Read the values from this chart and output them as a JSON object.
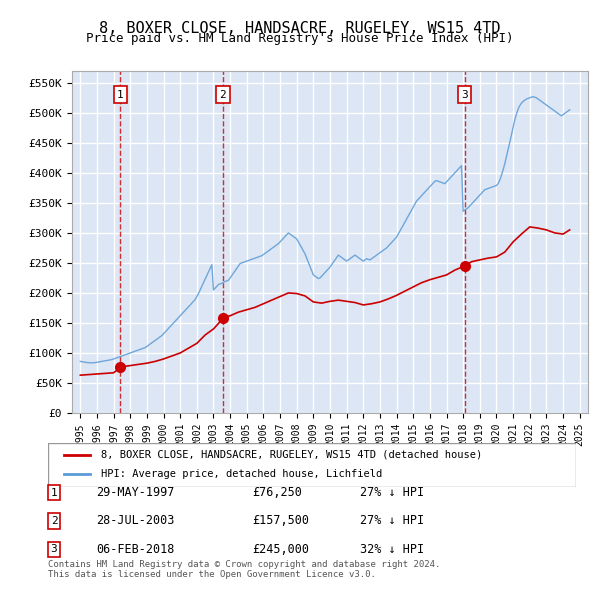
{
  "title": "8, BOXER CLOSE, HANDSACRE, RUGELEY, WS15 4TD",
  "subtitle": "Price paid vs. HM Land Registry's House Price Index (HPI)",
  "ylabel_ticks": [
    "£0",
    "£50K",
    "£100K",
    "£150K",
    "£200K",
    "£250K",
    "£300K",
    "£350K",
    "£400K",
    "£450K",
    "£500K",
    "£550K"
  ],
  "ytick_values": [
    0,
    50000,
    100000,
    150000,
    200000,
    250000,
    300000,
    350000,
    400000,
    450000,
    500000,
    550000
  ],
  "xlim": [
    1994.5,
    2025.5
  ],
  "ylim": [
    0,
    570000
  ],
  "bg_color": "#e8eef8",
  "plot_bg": "#dce6f5",
  "grid_color": "#ffffff",
  "sale_points": [
    {
      "date_num": 1997.41,
      "price": 76250,
      "label": "1"
    },
    {
      "date_num": 2003.57,
      "price": 157500,
      "label": "2"
    },
    {
      "date_num": 2018.09,
      "price": 245000,
      "label": "3"
    }
  ],
  "sale_marker_color": "#cc0000",
  "vline_color": "#cc0000",
  "legend_entries": [
    "8, BOXER CLOSE, HANDSACRE, RUGELEY, WS15 4TD (detached house)",
    "HPI: Average price, detached house, Lichfield"
  ],
  "table_rows": [
    [
      "1",
      "29-MAY-1997",
      "£76,250",
      "27% ↓ HPI"
    ],
    [
      "2",
      "28-JUL-2003",
      "£157,500",
      "27% ↓ HPI"
    ],
    [
      "3",
      "06-FEB-2018",
      "£245,000",
      "32% ↓ HPI"
    ]
  ],
  "footer": "Contains HM Land Registry data © Crown copyright and database right 2024.\nThis data is licensed under the Open Government Licence v3.0.",
  "hpi_data": {
    "years": [
      1995.0,
      1995.1,
      1995.2,
      1995.3,
      1995.4,
      1995.5,
      1995.6,
      1995.7,
      1995.8,
      1995.9,
      1996.0,
      1996.1,
      1996.2,
      1996.3,
      1996.4,
      1996.5,
      1996.6,
      1996.7,
      1996.8,
      1996.9,
      1997.0,
      1997.1,
      1997.2,
      1997.3,
      1997.4,
      1997.5,
      1997.6,
      1997.7,
      1997.8,
      1997.9,
      1998.0,
      1998.1,
      1998.2,
      1998.3,
      1998.4,
      1998.5,
      1998.6,
      1998.7,
      1998.8,
      1998.9,
      1999.0,
      1999.1,
      1999.2,
      1999.3,
      1999.4,
      1999.5,
      1999.6,
      1999.7,
      1999.8,
      1999.9,
      2000.0,
      2000.1,
      2000.2,
      2000.3,
      2000.4,
      2000.5,
      2000.6,
      2000.7,
      2000.8,
      2000.9,
      2001.0,
      2001.1,
      2001.2,
      2001.3,
      2001.4,
      2001.5,
      2001.6,
      2001.7,
      2001.8,
      2001.9,
      2002.0,
      2002.1,
      2002.2,
      2002.3,
      2002.4,
      2002.5,
      2002.6,
      2002.7,
      2002.8,
      2002.9,
      2003.0,
      2003.1,
      2003.2,
      2003.3,
      2003.4,
      2003.5,
      2003.6,
      2003.7,
      2003.8,
      2003.9,
      2004.0,
      2004.1,
      2004.2,
      2004.3,
      2004.4,
      2004.5,
      2004.6,
      2004.7,
      2004.8,
      2004.9,
      2005.0,
      2005.1,
      2005.2,
      2005.3,
      2005.4,
      2005.5,
      2005.6,
      2005.7,
      2005.8,
      2005.9,
      2006.0,
      2006.1,
      2006.2,
      2006.3,
      2006.4,
      2006.5,
      2006.6,
      2006.7,
      2006.8,
      2006.9,
      2007.0,
      2007.1,
      2007.2,
      2007.3,
      2007.4,
      2007.5,
      2007.6,
      2007.7,
      2007.8,
      2007.9,
      2008.0,
      2008.1,
      2008.2,
      2008.3,
      2008.4,
      2008.5,
      2008.6,
      2008.7,
      2008.8,
      2008.9,
      2009.0,
      2009.1,
      2009.2,
      2009.3,
      2009.4,
      2009.5,
      2009.6,
      2009.7,
      2009.8,
      2009.9,
      2010.0,
      2010.1,
      2010.2,
      2010.3,
      2010.4,
      2010.5,
      2010.6,
      2010.7,
      2010.8,
      2010.9,
      2011.0,
      2011.1,
      2011.2,
      2011.3,
      2011.4,
      2011.5,
      2011.6,
      2011.7,
      2011.8,
      2011.9,
      2012.0,
      2012.1,
      2012.2,
      2012.3,
      2012.4,
      2012.5,
      2012.6,
      2012.7,
      2012.8,
      2012.9,
      2013.0,
      2013.1,
      2013.2,
      2013.3,
      2013.4,
      2013.5,
      2013.6,
      2013.7,
      2013.8,
      2013.9,
      2014.0,
      2014.1,
      2014.2,
      2014.3,
      2014.4,
      2014.5,
      2014.6,
      2014.7,
      2014.8,
      2014.9,
      2015.0,
      2015.1,
      2015.2,
      2015.3,
      2015.4,
      2015.5,
      2015.6,
      2015.7,
      2015.8,
      2015.9,
      2016.0,
      2016.1,
      2016.2,
      2016.3,
      2016.4,
      2016.5,
      2016.6,
      2016.7,
      2016.8,
      2016.9,
      2017.0,
      2017.1,
      2017.2,
      2017.3,
      2017.4,
      2017.5,
      2017.6,
      2017.7,
      2017.8,
      2017.9,
      2018.0,
      2018.1,
      2018.2,
      2018.3,
      2018.4,
      2018.5,
      2018.6,
      2018.7,
      2018.8,
      2018.9,
      2019.0,
      2019.1,
      2019.2,
      2019.3,
      2019.4,
      2019.5,
      2019.6,
      2019.7,
      2019.8,
      2019.9,
      2020.0,
      2020.1,
      2020.2,
      2020.3,
      2020.4,
      2020.5,
      2020.6,
      2020.7,
      2020.8,
      2020.9,
      2021.0,
      2021.1,
      2021.2,
      2021.3,
      2021.4,
      2021.5,
      2021.6,
      2021.7,
      2021.8,
      2021.9,
      2022.0,
      2022.1,
      2022.2,
      2022.3,
      2022.4,
      2022.5,
      2022.6,
      2022.7,
      2022.8,
      2022.9,
      2023.0,
      2023.1,
      2023.2,
      2023.3,
      2023.4,
      2023.5,
      2023.6,
      2023.7,
      2023.8,
      2023.9,
      2024.0,
      2024.1,
      2024.2,
      2024.3,
      2024.4
    ],
    "values": [
      86000,
      85500,
      85000,
      84500,
      84000,
      83800,
      83600,
      83500,
      83700,
      84000,
      84500,
      85000,
      85500,
      86000,
      86500,
      87000,
      87500,
      88000,
      88500,
      89000,
      90000,
      91000,
      92000,
      93000,
      94000,
      95000,
      96000,
      97000,
      98000,
      99000,
      100000,
      101000,
      102000,
      103000,
      104000,
      105000,
      106000,
      107000,
      108000,
      109000,
      111000,
      113000,
      115000,
      117000,
      119000,
      121000,
      123000,
      125000,
      127000,
      129000,
      132000,
      135000,
      138000,
      141000,
      144000,
      147000,
      150000,
      153000,
      156000,
      159000,
      162000,
      165000,
      168000,
      171000,
      174000,
      177000,
      180000,
      183000,
      186000,
      189000,
      194000,
      199000,
      205000,
      211000,
      217000,
      223000,
      229000,
      235000,
      241000,
      247000,
      205000,
      208000,
      211000,
      214000,
      215000,
      216000,
      218000,
      219000,
      220000,
      221000,
      225000,
      229000,
      233000,
      237000,
      241000,
      245000,
      249000,
      250000,
      251000,
      252000,
      253000,
      254000,
      255000,
      256000,
      257000,
      258000,
      259000,
      260000,
      261000,
      262000,
      264000,
      266000,
      268000,
      270000,
      272000,
      274000,
      276000,
      278000,
      280000,
      282000,
      285000,
      288000,
      291000,
      294000,
      297000,
      300000,
      298000,
      296000,
      294000,
      292000,
      290000,
      285000,
      280000,
      275000,
      270000,
      265000,
      258000,
      251000,
      244000,
      237000,
      230000,
      228000,
      226000,
      224000,
      225000,
      228000,
      231000,
      234000,
      237000,
      240000,
      243000,
      247000,
      251000,
      255000,
      259000,
      263000,
      261000,
      259000,
      257000,
      255000,
      253000,
      255000,
      257000,
      259000,
      261000,
      263000,
      261000,
      259000,
      257000,
      255000,
      253000,
      255000,
      257000,
      256000,
      255000,
      257000,
      259000,
      261000,
      263000,
      265000,
      267000,
      269000,
      271000,
      273000,
      275000,
      278000,
      281000,
      284000,
      287000,
      290000,
      293000,
      298000,
      303000,
      308000,
      313000,
      318000,
      323000,
      328000,
      333000,
      338000,
      343000,
      348000,
      353000,
      356000,
      359000,
      362000,
      365000,
      368000,
      371000,
      374000,
      377000,
      380000,
      383000,
      386000,
      387000,
      386000,
      385000,
      384000,
      383000,
      382000,
      385000,
      388000,
      391000,
      394000,
      397000,
      400000,
      403000,
      406000,
      409000,
      412000,
      336000,
      338000,
      340000,
      342000,
      345000,
      348000,
      351000,
      354000,
      357000,
      360000,
      363000,
      366000,
      369000,
      372000,
      373000,
      374000,
      375000,
      376000,
      377000,
      378000,
      379000,
      382000,
      388000,
      396000,
      405000,
      415000,
      427000,
      439000,
      451000,
      463000,
      476000,
      488000,
      498000,
      506000,
      512000,
      516000,
      519000,
      521000,
      523000,
      524000,
      525000,
      526000,
      527000,
      526000,
      525000,
      523000,
      521000,
      519000,
      517000,
      515000,
      513000,
      511000,
      509000,
      507000,
      505000,
      503000,
      501000,
      499000,
      497000,
      495000,
      497000,
      499000,
      501000,
      503000,
      505000
    ]
  },
  "price_line_data": {
    "years": [
      1995.0,
      1995.5,
      1996.0,
      1996.5,
      1997.0,
      1997.41,
      1997.5,
      1998.0,
      1998.5,
      1999.0,
      1999.5,
      2000.0,
      2000.5,
      2001.0,
      2001.5,
      2002.0,
      2002.5,
      2003.0,
      2003.57,
      2003.7,
      2004.0,
      2004.5,
      2005.0,
      2005.5,
      2006.0,
      2006.5,
      2007.0,
      2007.5,
      2008.0,
      2008.5,
      2009.0,
      2009.5,
      2010.0,
      2010.5,
      2011.0,
      2011.5,
      2012.0,
      2012.5,
      2013.0,
      2013.5,
      2014.0,
      2014.5,
      2015.0,
      2015.5,
      2016.0,
      2016.5,
      2017.0,
      2017.5,
      2018.09,
      2018.5,
      2019.0,
      2019.5,
      2020.0,
      2020.5,
      2021.0,
      2021.5,
      2022.0,
      2022.5,
      2023.0,
      2023.5,
      2024.0,
      2024.4
    ],
    "values": [
      63000,
      64000,
      65000,
      66000,
      67000,
      76250,
      77000,
      79000,
      81000,
      83000,
      86000,
      90000,
      95000,
      100000,
      108000,
      116000,
      130000,
      140000,
      157500,
      160000,
      162000,
      168000,
      172000,
      176000,
      182000,
      188000,
      194000,
      200000,
      199000,
      195000,
      185000,
      183000,
      186000,
      188000,
      186000,
      184000,
      180000,
      182000,
      185000,
      190000,
      196000,
      203000,
      210000,
      217000,
      222000,
      226000,
      230000,
      238000,
      245000,
      252000,
      255000,
      258000,
      260000,
      268000,
      285000,
      298000,
      310000,
      308000,
      305000,
      300000,
      298000,
      305000
    ]
  }
}
